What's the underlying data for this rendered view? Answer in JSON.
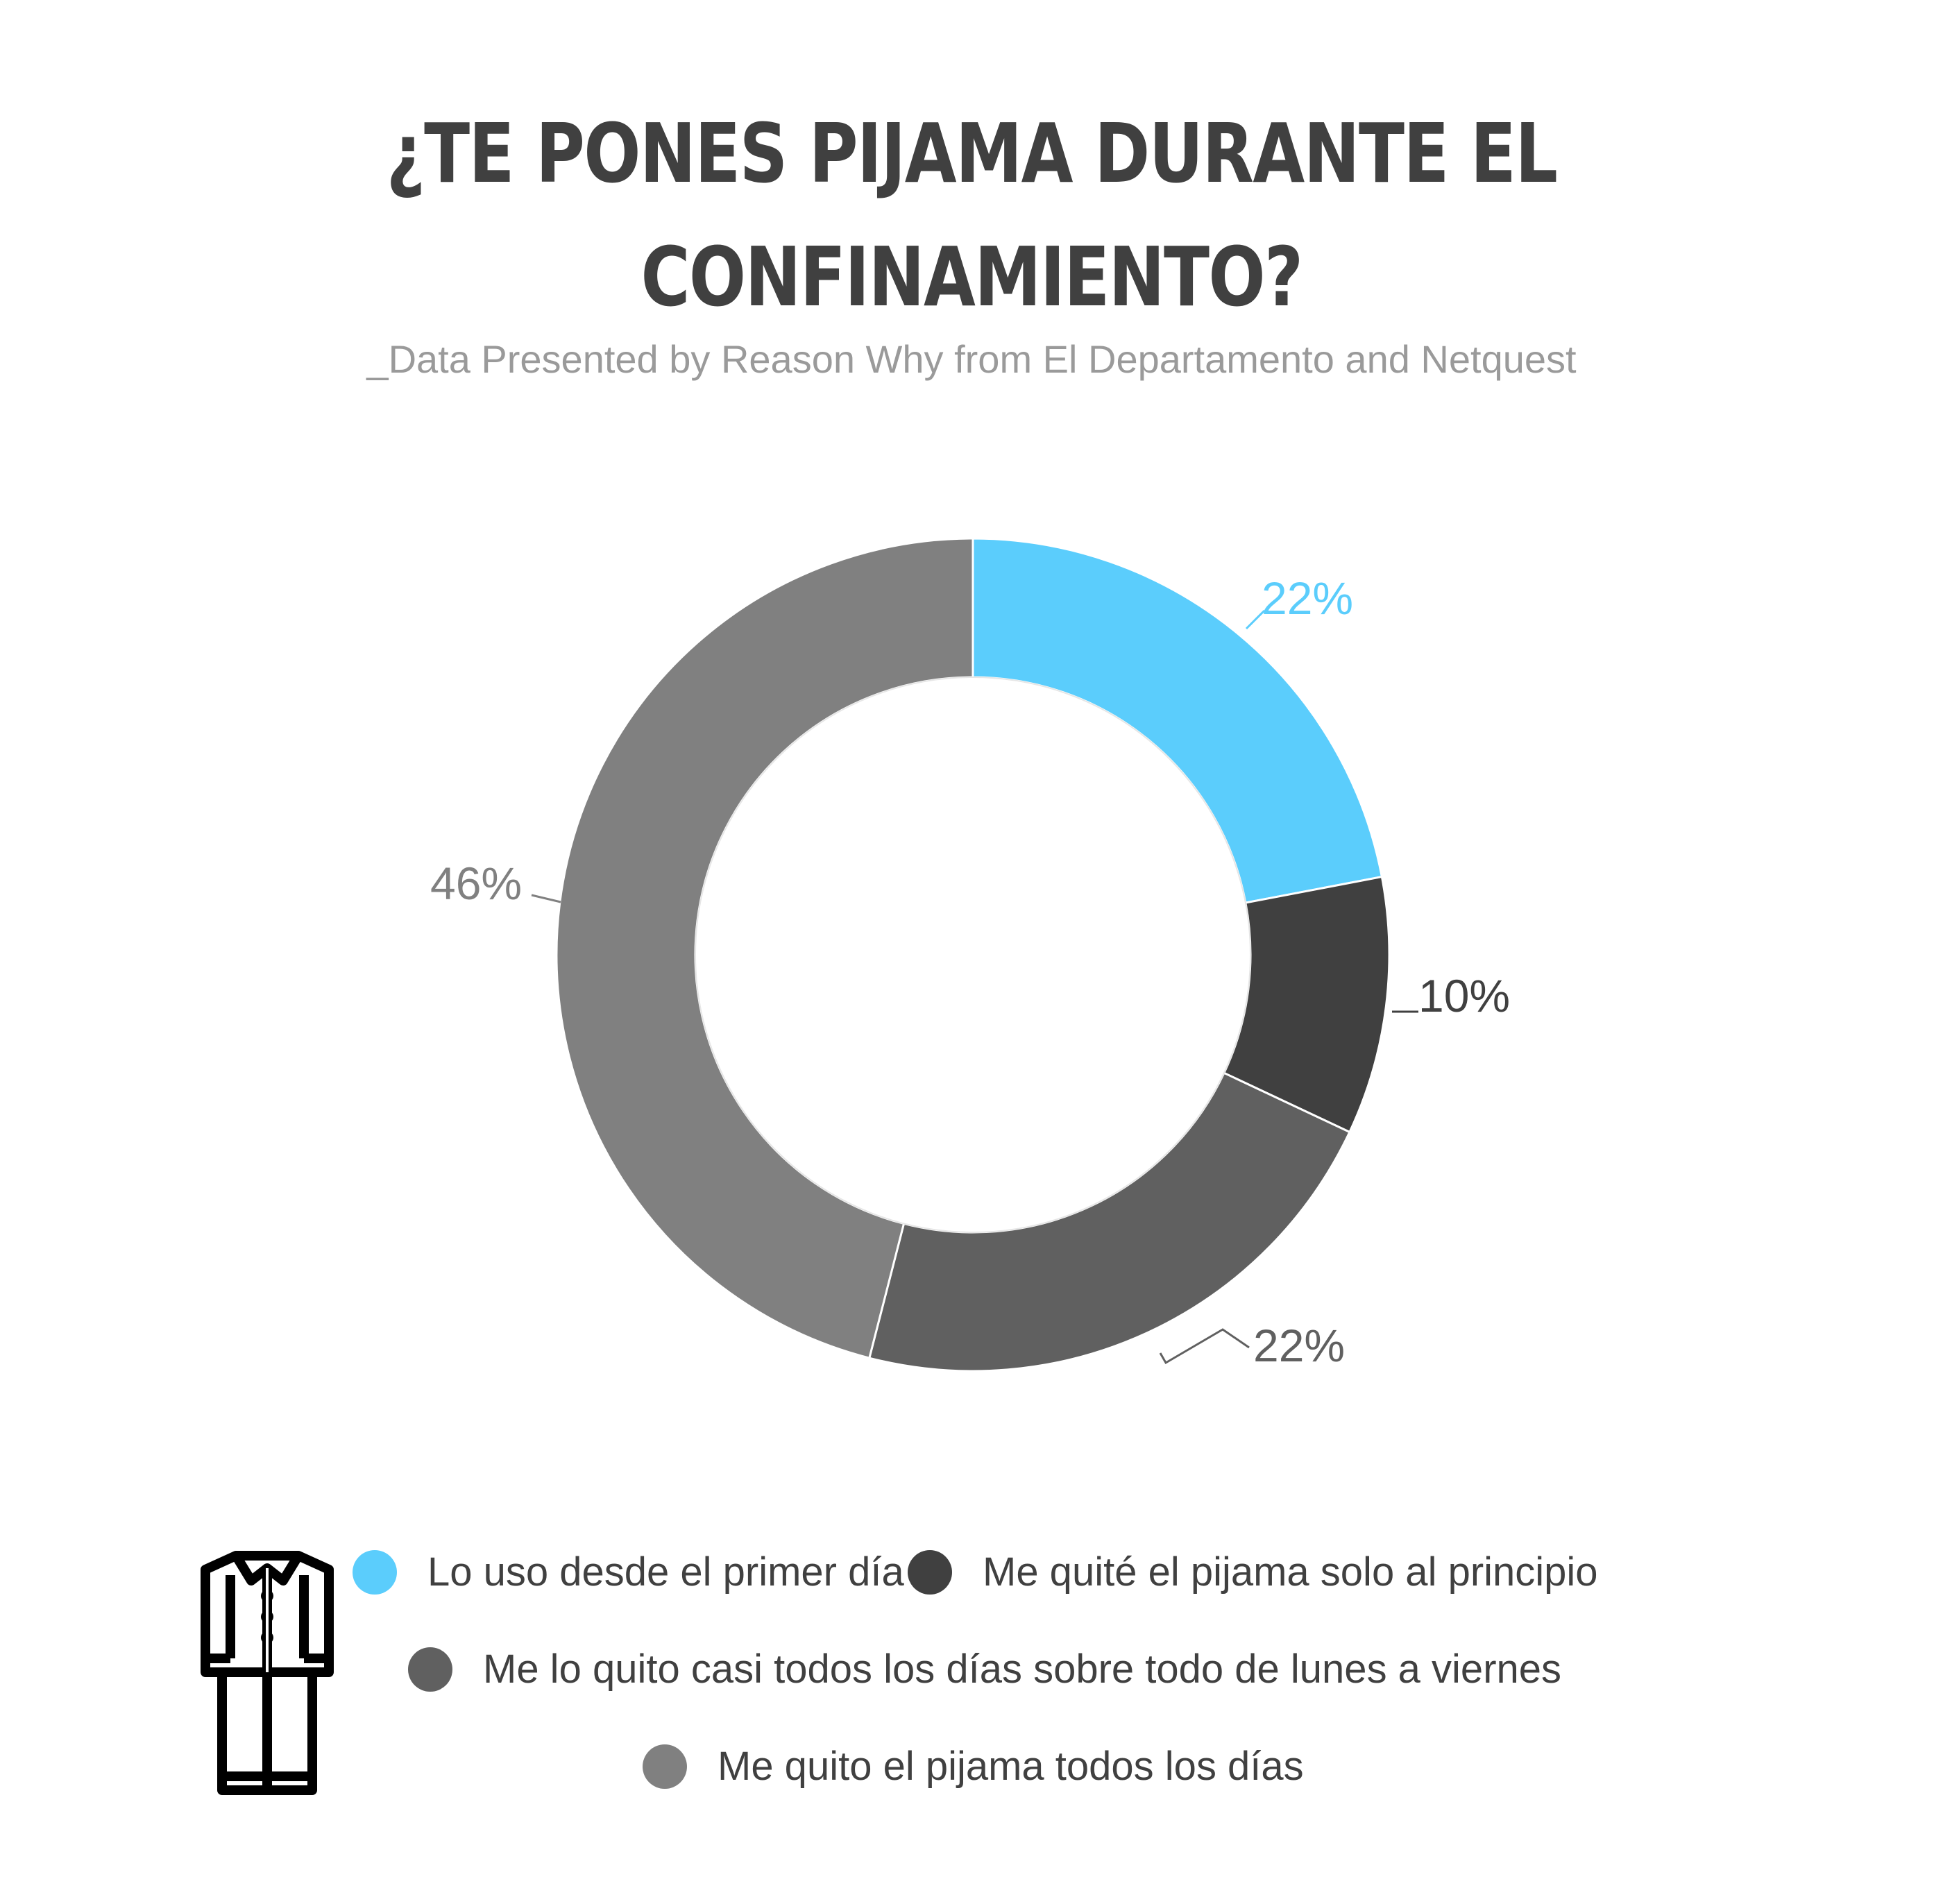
{
  "chart_data": {
    "type": "pie",
    "donut": true,
    "title_lines": [
      "¿TE PONES PIJAMA DURANTE EL",
      "CONFINAMIENTO?"
    ],
    "subtitle": "_Data Presented by Reason Why from El Departamento and Netquest",
    "slices": [
      {
        "name": "Lo uso desde el primer día",
        "value": 22,
        "label": "22%",
        "color": "#5bcdfc",
        "label_color": "#5bcdfc"
      },
      {
        "name": "Me quité el pijama solo al principio",
        "value": 10,
        "label": "10%",
        "color": "#404040",
        "label_color": "#404040"
      },
      {
        "name": "Me lo quito casi todos los días sobre todo de lunes a viernes",
        "value": 22,
        "label": "22%",
        "color": "#606060",
        "label_color": "#606060"
      },
      {
        "name": "Me quito el pijama todos los días",
        "value": 46,
        "label": "46%",
        "color": "#808080",
        "label_color": "#808080"
      }
    ],
    "legend_position": "bottom"
  },
  "icons": {
    "legend_icon": "pajamas-icon"
  }
}
